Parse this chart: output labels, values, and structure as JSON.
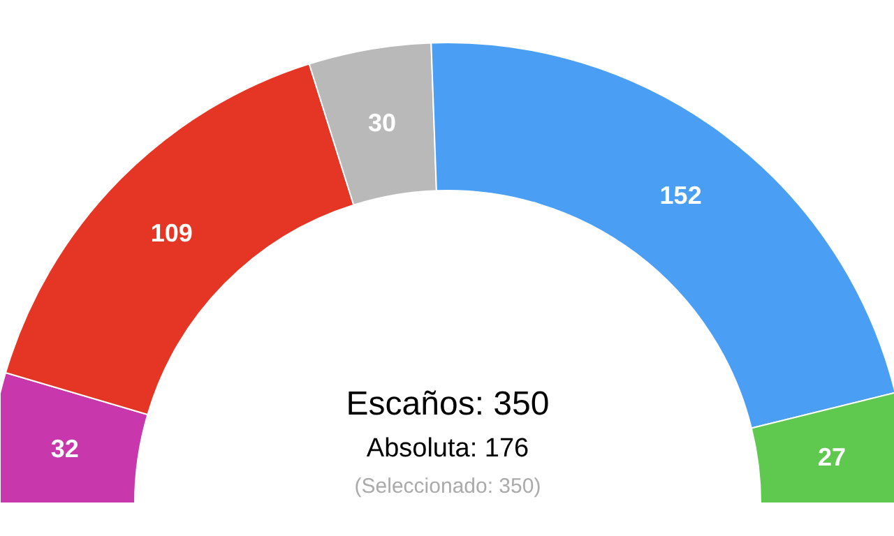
{
  "chart_data": {
    "type": "donut",
    "categories": [
      null,
      null,
      null,
      null,
      null
    ],
    "values": [
      32,
      109,
      30,
      152,
      27
    ],
    "colors": [
      "#c837ab",
      "#e53524",
      "#b9b9b9",
      "#4a9ff5",
      "#5fc84f"
    ],
    "data_labels": true,
    "annotations": [
      "Escaños: 350",
      "Absoluta: 176",
      "(Seleccionado: 350)"
    ]
  }
}
